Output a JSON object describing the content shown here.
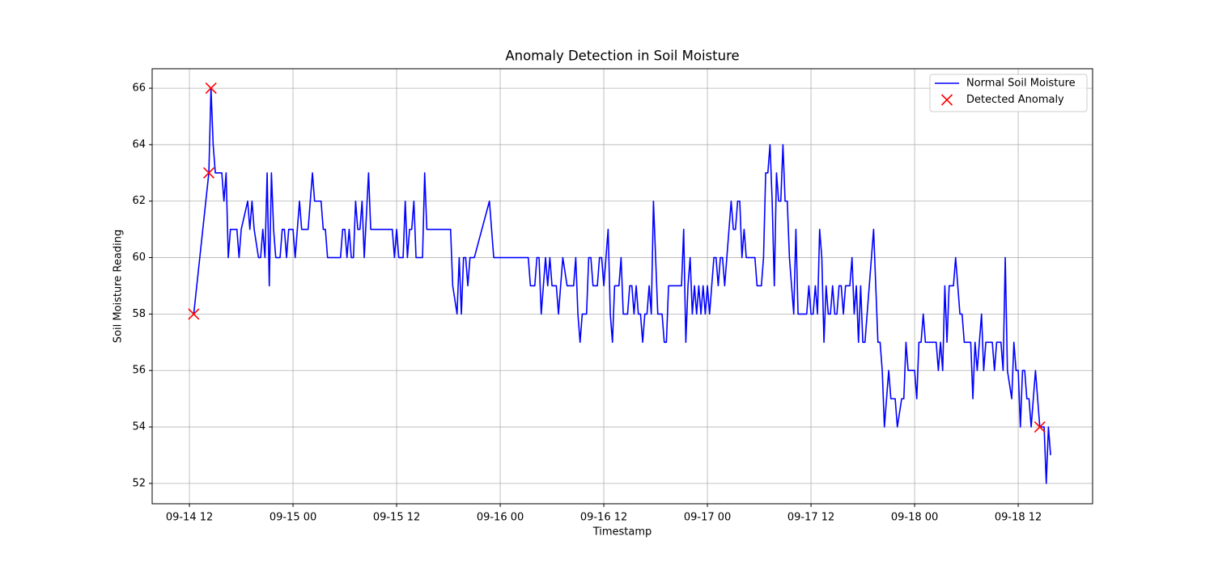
{
  "chart_data": {
    "type": "line",
    "title": "Anomaly Detection in Soil Moisture",
    "x_label": "Timestamp",
    "y_label": "Soil Moisture Reading",
    "xlim": [
      "09-14 07:41",
      "09-18 20:37"
    ],
    "xticks": [
      "09-14 12",
      "09-15 00",
      "09-15 12",
      "09-16 00",
      "09-16 12",
      "09-17 00",
      "09-17 12",
      "09-18 00",
      "09-18 12"
    ],
    "ylim": [
      51.28,
      66.69
    ],
    "yticks": [
      52,
      54,
      56,
      58,
      60,
      62,
      64,
      66
    ],
    "grid": true,
    "legend": "upper right",
    "series": [
      {
        "name": "Normal Soil Moisture",
        "type": "line",
        "color": "#0000ff",
        "x": [
          "09-14 12:30",
          "09-14 14:15",
          "09-14 14:30",
          "09-14 14:45",
          "09-14 15:00",
          "09-14 15:45",
          "09-14 16:00",
          "09-14 16:15",
          "09-14 16:30",
          "09-14 16:45",
          "09-14 17:30",
          "09-14 17:45",
          "09-14 18:00",
          "09-14 18:45",
          "09-14 19:00",
          "09-14 19:15",
          "09-14 19:30",
          "09-14 20:00",
          "09-14 20:15",
          "09-14 20:30",
          "09-14 20:45",
          "09-14 21:00",
          "09-14 21:15",
          "09-14 21:30",
          "09-14 21:45",
          "09-14 22:00",
          "09-14 22:30",
          "09-14 22:45",
          "09-14 23:00",
          "09-14 23:15",
          "09-14 23:30",
          "09-15 00:00",
          "09-15 00:15",
          "09-15 00:45",
          "09-15 01:00",
          "09-15 01:45",
          "09-15 02:15",
          "09-15 02:30",
          "09-15 03:15",
          "09-15 03:30",
          "09-15 03:45",
          "09-15 04:00",
          "09-15 05:30",
          "09-15 05:45",
          "09-15 06:00",
          "09-15 06:15",
          "09-15 06:30",
          "09-15 06:45",
          "09-15 07:00",
          "09-15 07:15",
          "09-15 07:30",
          "09-15 07:45",
          "09-15 08:00",
          "09-15 08:15",
          "09-15 08:45",
          "09-15 09:00",
          "09-15 11:30",
          "09-15 11:45",
          "09-15 12:00",
          "09-15 12:15",
          "09-15 12:45",
          "09-15 13:00",
          "09-15 13:15",
          "09-15 13:30",
          "09-15 13:45",
          "09-15 14:00",
          "09-15 14:15",
          "09-15 15:00",
          "09-15 15:15",
          "09-15 15:30",
          "09-15 18:15",
          "09-15 18:30",
          "09-15 19:00",
          "09-15 19:15",
          "09-15 19:30",
          "09-15 19:45",
          "09-15 20:00",
          "09-15 20:15",
          "09-15 20:30",
          "09-15 21:00",
          "09-15 22:45",
          "09-15 23:15",
          "09-16 03:15",
          "09-16 03:30",
          "09-16 04:00",
          "09-16 04:15",
          "09-16 04:30",
          "09-16 04:45",
          "09-16 05:15",
          "09-16 05:30",
          "09-16 05:45",
          "09-16 06:00",
          "09-16 06:30",
          "09-16 06:45",
          "09-16 07:15",
          "09-16 07:45",
          "09-16 08:30",
          "09-16 08:45",
          "09-16 09:00",
          "09-16 09:15",
          "09-16 09:30",
          "09-16 10:00",
          "09-16 10:15",
          "09-16 10:30",
          "09-16 10:45",
          "09-16 11:15",
          "09-16 11:30",
          "09-16 11:45",
          "09-16 12:00",
          "09-16 12:30",
          "09-16 12:45",
          "09-16 13:00",
          "09-16 13:15",
          "09-16 13:45",
          "09-16 14:00",
          "09-16 14:15",
          "09-16 14:45",
          "09-16 15:00",
          "09-16 15:15",
          "09-16 15:30",
          "09-16 15:45",
          "09-16 16:00",
          "09-16 16:15",
          "09-16 16:30",
          "09-16 16:45",
          "09-16 17:00",
          "09-16 17:15",
          "09-16 17:30",
          "09-16 17:45",
          "09-16 18:00",
          "09-16 18:15",
          "09-16 18:45",
          "09-16 19:00",
          "09-16 19:15",
          "09-16 19:30",
          "09-16 21:00",
          "09-16 21:15",
          "09-16 21:30",
          "09-16 21:45",
          "09-16 22:00",
          "09-16 22:15",
          "09-16 22:30",
          "09-16 22:45",
          "09-16 23:00",
          "09-16 23:15",
          "09-16 23:30",
          "09-16 23:45",
          "09-17 00:00",
          "09-17 00:15",
          "09-17 00:30",
          "09-17 00:45",
          "09-17 01:00",
          "09-17 01:15",
          "09-17 01:30",
          "09-17 01:45",
          "09-17 02:00",
          "09-17 02:15",
          "09-17 02:45",
          "09-17 03:00",
          "09-17 03:15",
          "09-17 03:30",
          "09-17 03:45",
          "09-17 04:00",
          "09-17 04:15",
          "09-17 04:30",
          "09-17 05:30",
          "09-17 05:45",
          "09-17 06:15",
          "09-17 06:30",
          "09-17 06:45",
          "09-17 07:00",
          "09-17 07:15",
          "09-17 07:30",
          "09-17 07:45",
          "09-17 08:00",
          "09-17 08:15",
          "09-17 08:30",
          "09-17 08:45",
          "09-17 09:00",
          "09-17 09:15",
          "09-17 09:30",
          "09-17 10:00",
          "09-17 10:15",
          "09-17 10:30",
          "09-17 11:30",
          "09-17 11:45",
          "09-17 12:00",
          "09-17 12:15",
          "09-17 12:30",
          "09-17 12:45",
          "09-17 13:00",
          "09-17 13:15",
          "09-17 13:30",
          "09-17 13:45",
          "09-17 14:00",
          "09-17 14:15",
          "09-17 14:30",
          "09-17 14:45",
          "09-17 15:00",
          "09-17 15:15",
          "09-17 15:30",
          "09-17 15:45",
          "09-17 16:00",
          "09-17 16:30",
          "09-17 16:45",
          "09-17 17:00",
          "09-17 17:15",
          "09-17 17:30",
          "09-17 17:45",
          "09-17 18:00",
          "09-17 18:15",
          "09-17 19:15",
          "09-17 19:30",
          "09-17 19:45",
          "09-17 20:00",
          "09-17 20:15",
          "09-17 20:30",
          "09-17 21:00",
          "09-17 21:15",
          "09-17 21:45",
          "09-17 22:00",
          "09-17 22:30",
          "09-17 22:45",
          "09-17 23:00",
          "09-17 23:15",
          "09-18 00:00",
          "09-18 00:15",
          "09-18 00:30",
          "09-18 00:45",
          "09-18 01:00",
          "09-18 01:15",
          "09-18 02:30",
          "09-18 02:45",
          "09-18 03:00",
          "09-18 03:15",
          "09-18 03:30",
          "09-18 03:45",
          "09-18 04:00",
          "09-18 04:30",
          "09-18 04:45",
          "09-18 05:15",
          "09-18 05:30",
          "09-18 05:45",
          "09-18 06:30",
          "09-18 06:45",
          "09-18 07:00",
          "09-18 07:15",
          "09-18 07:45",
          "09-18 08:00",
          "09-18 08:15",
          "09-18 09:00",
          "09-18 09:15",
          "09-18 09:30",
          "09-18 10:00",
          "09-18 10:15",
          "09-18 10:30",
          "09-18 10:45",
          "09-18 11:15",
          "09-18 11:30",
          "09-18 11:45",
          "09-18 12:00",
          "09-18 12:15",
          "09-18 12:30",
          "09-18 12:45",
          "09-18 13:00",
          "09-18 13:15",
          "09-18 13:30",
          "09-18 13:45",
          "09-18 14:00",
          "09-18 14:15",
          "09-18 14:30",
          "09-18 15:00",
          "09-18 15:15",
          "09-18 15:30",
          "09-18 15:45"
        ],
        "values": [
          58,
          63,
          66,
          64,
          63,
          63,
          62,
          63,
          60,
          61,
          61,
          60,
          61,
          62,
          61,
          62,
          61,
          60,
          60,
          61,
          60,
          63,
          59,
          63,
          61,
          60,
          60,
          61,
          61,
          60,
          61,
          61,
          60,
          62,
          61,
          61,
          63,
          62,
          62,
          61,
          61,
          60,
          60,
          61,
          61,
          60,
          61,
          60,
          60,
          62,
          61,
          61,
          62,
          60,
          63,
          61,
          61,
          60,
          61,
          60,
          60,
          62,
          60,
          61,
          61,
          62,
          60,
          60,
          63,
          61,
          61,
          59,
          58,
          60,
          58,
          60,
          60,
          59,
          60,
          60,
          62,
          60,
          60,
          59,
          59,
          60,
          60,
          58,
          60,
          59,
          60,
          59,
          59,
          58,
          60,
          59,
          59,
          60,
          58,
          57,
          58,
          58,
          60,
          60,
          59,
          59,
          60,
          60,
          59,
          61,
          58,
          57,
          59,
          59,
          60,
          58,
          58,
          59,
          59,
          58,
          59,
          58,
          58,
          57,
          58,
          58,
          59,
          58,
          62,
          60,
          58,
          58,
          57,
          57,
          59,
          59,
          61,
          57,
          59,
          60,
          58,
          59,
          58,
          59,
          58,
          59,
          58,
          59,
          58,
          59,
          60,
          60,
          59,
          60,
          60,
          59,
          60,
          62,
          61,
          61,
          62,
          62,
          60,
          61,
          60,
          60,
          59,
          59,
          60,
          63,
          63,
          64,
          62,
          59,
          63,
          62,
          62,
          64,
          62,
          62,
          60,
          58,
          61,
          58,
          58,
          59,
          58,
          58,
          59,
          58,
          61,
          60,
          57,
          59,
          58,
          58,
          59,
          58,
          58,
          59,
          59,
          58,
          59,
          59,
          60,
          58,
          59,
          57,
          59,
          57,
          57,
          61,
          59,
          57,
          57,
          56,
          54,
          56,
          55,
          55,
          54,
          55,
          55,
          57,
          56,
          56,
          55,
          57,
          57,
          58,
          57,
          57,
          56,
          57,
          56,
          59,
          57,
          59,
          59,
          60,
          58,
          58,
          57,
          57,
          55,
          57,
          56,
          58,
          56,
          57,
          57,
          56,
          57,
          57,
          56,
          60,
          56,
          55,
          57,
          56,
          56,
          54,
          56,
          56,
          55,
          55,
          54,
          55,
          56,
          55,
          54,
          54,
          52,
          54,
          53
        ]
      },
      {
        "name": "Detected Anomaly",
        "type": "scatter",
        "color": "#ff0000",
        "x": [
          "09-14 12:30",
          "09-14 14:15",
          "09-14 14:30",
          "09-18 14:30"
        ],
        "values": [
          58,
          63,
          66,
          54
        ]
      }
    ]
  }
}
